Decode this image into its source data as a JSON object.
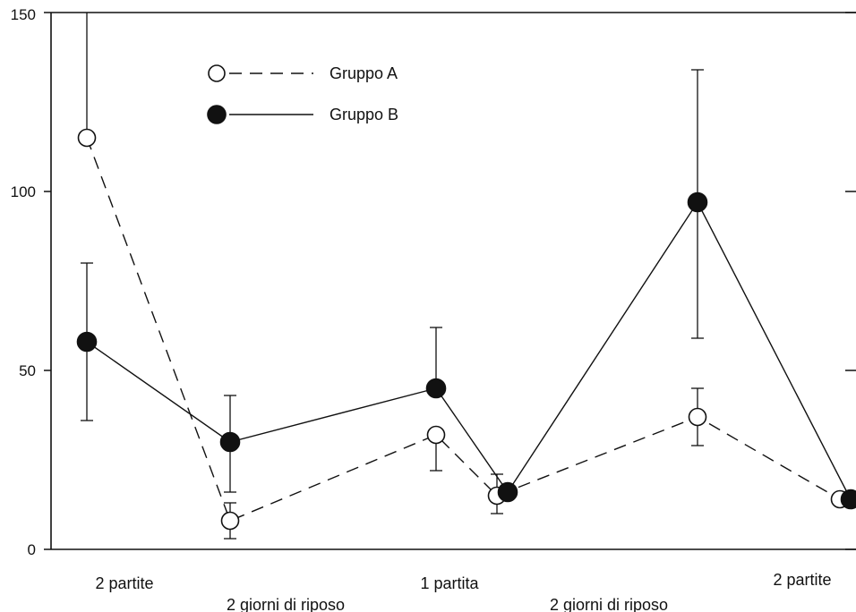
{
  "chart_data": {
    "type": "line",
    "title": "",
    "xlabel": "",
    "ylabel": "",
    "ylim": [
      0,
      150
    ],
    "yticks": [
      0,
      50,
      100,
      150
    ],
    "grid": false,
    "legend_placement": "top-left",
    "category_labels": [
      "2 partite",
      "2 giorni di riposo",
      "1 partita",
      "2 giorni di riposo",
      "2 partite"
    ],
    "series": [
      {
        "name": "Gruppo A",
        "style": "dashed",
        "marker": "open-circle",
        "color": "#111111",
        "points": [
          {
            "x": 1.0,
            "y": 115
          },
          {
            "x": 2.0,
            "y": 8
          },
          {
            "x": 3.0,
            "y": 32
          },
          {
            "x": 3.5,
            "y": 15
          },
          {
            "x": 4.5,
            "y": 37
          },
          {
            "x": 5.5,
            "y": 14
          }
        ],
        "errors": [
          {
            "x": 2.0,
            "upper": 13,
            "lower": 3
          },
          {
            "x": 3.0,
            "upper": null,
            "lower": 22
          },
          {
            "x": 3.5,
            "upper": 21,
            "lower": 10
          },
          {
            "x": 4.5,
            "upper": null,
            "lower": 29
          }
        ]
      },
      {
        "name": "Gruppo B",
        "style": "solid",
        "marker": "filled-circle",
        "color": "#111111",
        "points": [
          {
            "x": 1.0,
            "y": 58
          },
          {
            "x": 2.0,
            "y": 30
          },
          {
            "x": 3.0,
            "y": 45
          },
          {
            "x": 3.55,
            "y": 16
          },
          {
            "x": 4.5,
            "y": 97
          },
          {
            "x": 5.55,
            "y": 14
          }
        ],
        "errors": [
          {
            "x": 1.0,
            "upper": 80,
            "lower": 36
          },
          {
            "x": 2.0,
            "upper": 43,
            "lower": 16
          },
          {
            "x": 3.0,
            "upper": 62,
            "lower": null
          },
          {
            "x": 4.5,
            "upper": 134,
            "lower": 59
          }
        ]
      }
    ],
    "extra_errors": [
      {
        "x": 1.0,
        "upper": 150,
        "lower": null,
        "series": "Gruppo A"
      },
      {
        "x": 4.5,
        "upper": 45,
        "lower": null,
        "series": "Gruppo A"
      }
    ]
  }
}
